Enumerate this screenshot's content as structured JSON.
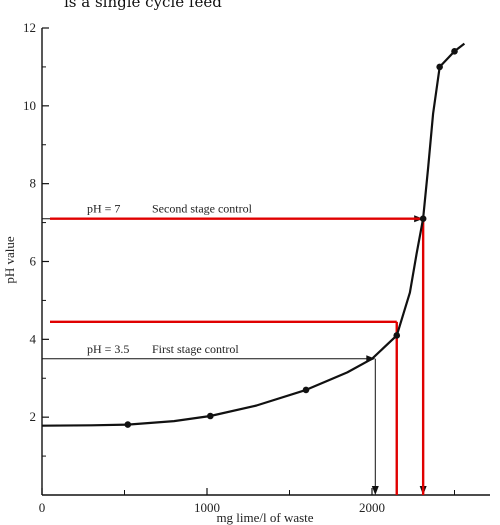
{
  "top_text_fragment": "is a single cycle feed",
  "chart_data": {
    "type": "line",
    "xlabel": "mg lime/l of waste",
    "ylabel": "pH value",
    "xlim": [
      0,
      2600
    ],
    "ylim": [
      0,
      12
    ],
    "x_ticks": [
      {
        "value": 0,
        "label": "0"
      },
      {
        "value": 1000,
        "label": "1000"
      },
      {
        "value": 2000,
        "label": "2000"
      }
    ],
    "y_ticks": [
      {
        "value": 2,
        "label": "2"
      },
      {
        "value": 4,
        "label": "4"
      },
      {
        "value": 6,
        "label": "6"
      },
      {
        "value": 8,
        "label": "8"
      },
      {
        "value": 10,
        "label": "10"
      },
      {
        "value": 12,
        "label": "12"
      }
    ],
    "grid": false,
    "series": [
      {
        "name": "",
        "color": "#111111",
        "curve": [
          [
            0,
            1.78
          ],
          [
            300,
            1.79
          ],
          [
            520,
            1.81
          ],
          [
            800,
            1.9
          ],
          [
            1020,
            2.03
          ],
          [
            1300,
            2.3
          ],
          [
            1600,
            2.7
          ],
          [
            1850,
            3.15
          ],
          [
            2000,
            3.5
          ],
          [
            2150,
            4.1
          ],
          [
            2230,
            5.2
          ],
          [
            2270,
            6.2
          ],
          [
            2310,
            7.1
          ],
          [
            2340,
            8.4
          ],
          [
            2370,
            9.8
          ],
          [
            2410,
            11.0
          ],
          [
            2500,
            11.4
          ],
          [
            2560,
            11.6
          ]
        ],
        "markers": [
          [
            520,
            1.81
          ],
          [
            1020,
            2.03
          ],
          [
            1600,
            2.7
          ],
          [
            2150,
            4.1
          ],
          [
            2310,
            7.1
          ],
          [
            2410,
            11.0
          ],
          [
            2500,
            11.4
          ]
        ]
      }
    ],
    "annotations": [
      {
        "name": "first-stage",
        "text_ph": "pH = 3.5",
        "text_control": "First stage control",
        "y": 3.5,
        "x_end": 2020,
        "color": "#111111"
      },
      {
        "name": "second-stage",
        "text_ph": "pH = 7",
        "text_control": "Second stage control",
        "y": 7.1,
        "x_end": 2310,
        "color": "#111111"
      }
    ],
    "highlight_lines": {
      "color": "#e00000",
      "horizontal": [
        {
          "y": 7.1,
          "x_end": 2310
        },
        {
          "y": 4.45,
          "x_end": 2150
        }
      ],
      "vertical": [
        {
          "x": 2150,
          "y_top": 4.45
        },
        {
          "x": 2310,
          "y_top": 7.1
        }
      ]
    }
  }
}
